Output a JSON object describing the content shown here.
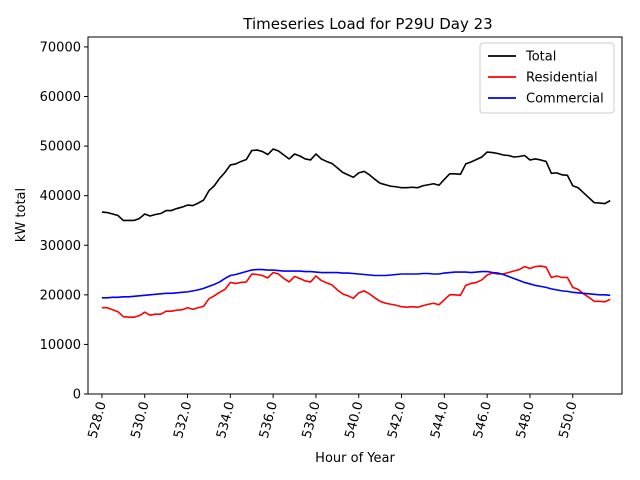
{
  "chart_data": {
    "type": "line",
    "title": "Timeseries Load for P29U   Day 23",
    "xlabel": "Hour of Year",
    "ylabel": "kW total",
    "xlim": [
      527.35,
      552.3
    ],
    "ylim": [
      0,
      72000
    ],
    "xticks": [
      528,
      530,
      532,
      534,
      536,
      538,
      540,
      542,
      544,
      546,
      548,
      550
    ],
    "xtick_labels": [
      "528.0",
      "530.0",
      "532.0",
      "534.0",
      "536.0",
      "538.0",
      "540.0",
      "542.0",
      "544.0",
      "546.0",
      "548.0",
      "550.0"
    ],
    "yticks": [
      0,
      10000,
      20000,
      30000,
      40000,
      50000,
      60000,
      70000
    ],
    "ytick_labels": [
      "0",
      "10000",
      "20000",
      "30000",
      "40000",
      "50000",
      "60000",
      "70000"
    ],
    "legend_position": "top-right",
    "x_start": 528.0,
    "x_step": 0.25,
    "series": [
      {
        "name": "Total",
        "color": "#000000",
        "values": [
          36700,
          36600,
          36300,
          36000,
          35000,
          35000,
          35000,
          35400,
          36300,
          35900,
          36200,
          36400,
          37000,
          37000,
          37400,
          37700,
          38100,
          38000,
          38500,
          39100,
          41000,
          42000,
          43500,
          44700,
          46200,
          46400,
          46900,
          47300,
          49100,
          49200,
          48900,
          48300,
          49400,
          49000,
          48200,
          47400,
          48400,
          48000,
          47400,
          47200,
          48400,
          47400,
          46900,
          46500,
          45600,
          44700,
          44200,
          43700,
          44600,
          44900,
          44200,
          43300,
          42500,
          42200,
          41900,
          41800,
          41600,
          41600,
          41700,
          41600,
          42000,
          42200,
          42400,
          42100,
          43300,
          44400,
          44400,
          44300,
          46400,
          46800,
          47300,
          47800,
          48800,
          48700,
          48500,
          48200,
          48100,
          47800,
          47900,
          48100,
          47200,
          47400,
          47200,
          46900,
          44500,
          44600,
          44200,
          44100,
          42000,
          41600,
          40600,
          39600,
          38600,
          38500,
          38400,
          39000
        ]
      },
      {
        "name": "Residential",
        "color": "#ff0000",
        "values": [
          17400,
          17400,
          17000,
          16600,
          15600,
          15500,
          15500,
          15800,
          16500,
          15900,
          16100,
          16100,
          16700,
          16700,
          16900,
          17000,
          17400,
          17100,
          17400,
          17700,
          19200,
          19800,
          20500,
          21100,
          22500,
          22300,
          22500,
          22600,
          24200,
          24100,
          23900,
          23400,
          24500,
          24200,
          23300,
          22600,
          23700,
          23300,
          22800,
          22600,
          23800,
          22900,
          22400,
          22000,
          21000,
          20200,
          19800,
          19300,
          20400,
          20800,
          20200,
          19400,
          18700,
          18300,
          18100,
          17900,
          17600,
          17500,
          17600,
          17500,
          17800,
          18100,
          18300,
          18000,
          19000,
          20000,
          20000,
          19900,
          21900,
          22300,
          22500,
          23000,
          24000,
          24400,
          24200,
          24200,
          24500,
          24800,
          25100,
          25700,
          25300,
          25700,
          25800,
          25600,
          23500,
          23800,
          23500,
          23500,
          21500,
          21100,
          20200,
          19500,
          18700,
          18700,
          18600,
          19100
        ]
      },
      {
        "name": "Commercial",
        "color": "#0000ff",
        "values": [
          19400,
          19400,
          19500,
          19500,
          19600,
          19600,
          19700,
          19800,
          19900,
          20000,
          20100,
          20200,
          20300,
          20300,
          20400,
          20500,
          20600,
          20800,
          21000,
          21300,
          21700,
          22100,
          22600,
          23300,
          23900,
          24100,
          24400,
          24700,
          25000,
          25100,
          25100,
          25000,
          25000,
          24900,
          24800,
          24800,
          24800,
          24800,
          24700,
          24700,
          24600,
          24500,
          24500,
          24500,
          24500,
          24400,
          24400,
          24300,
          24200,
          24100,
          24000,
          23900,
          23900,
          23900,
          24000,
          24100,
          24200,
          24200,
          24200,
          24200,
          24300,
          24300,
          24200,
          24200,
          24400,
          24500,
          24600,
          24600,
          24600,
          24500,
          24600,
          24700,
          24700,
          24500,
          24400,
          24100,
          23700,
          23300,
          22900,
          22500,
          22200,
          21900,
          21700,
          21500,
          21200,
          21000,
          20800,
          20700,
          20500,
          20400,
          20300,
          20200,
          20100,
          20000,
          20000,
          19900
        ]
      }
    ]
  }
}
